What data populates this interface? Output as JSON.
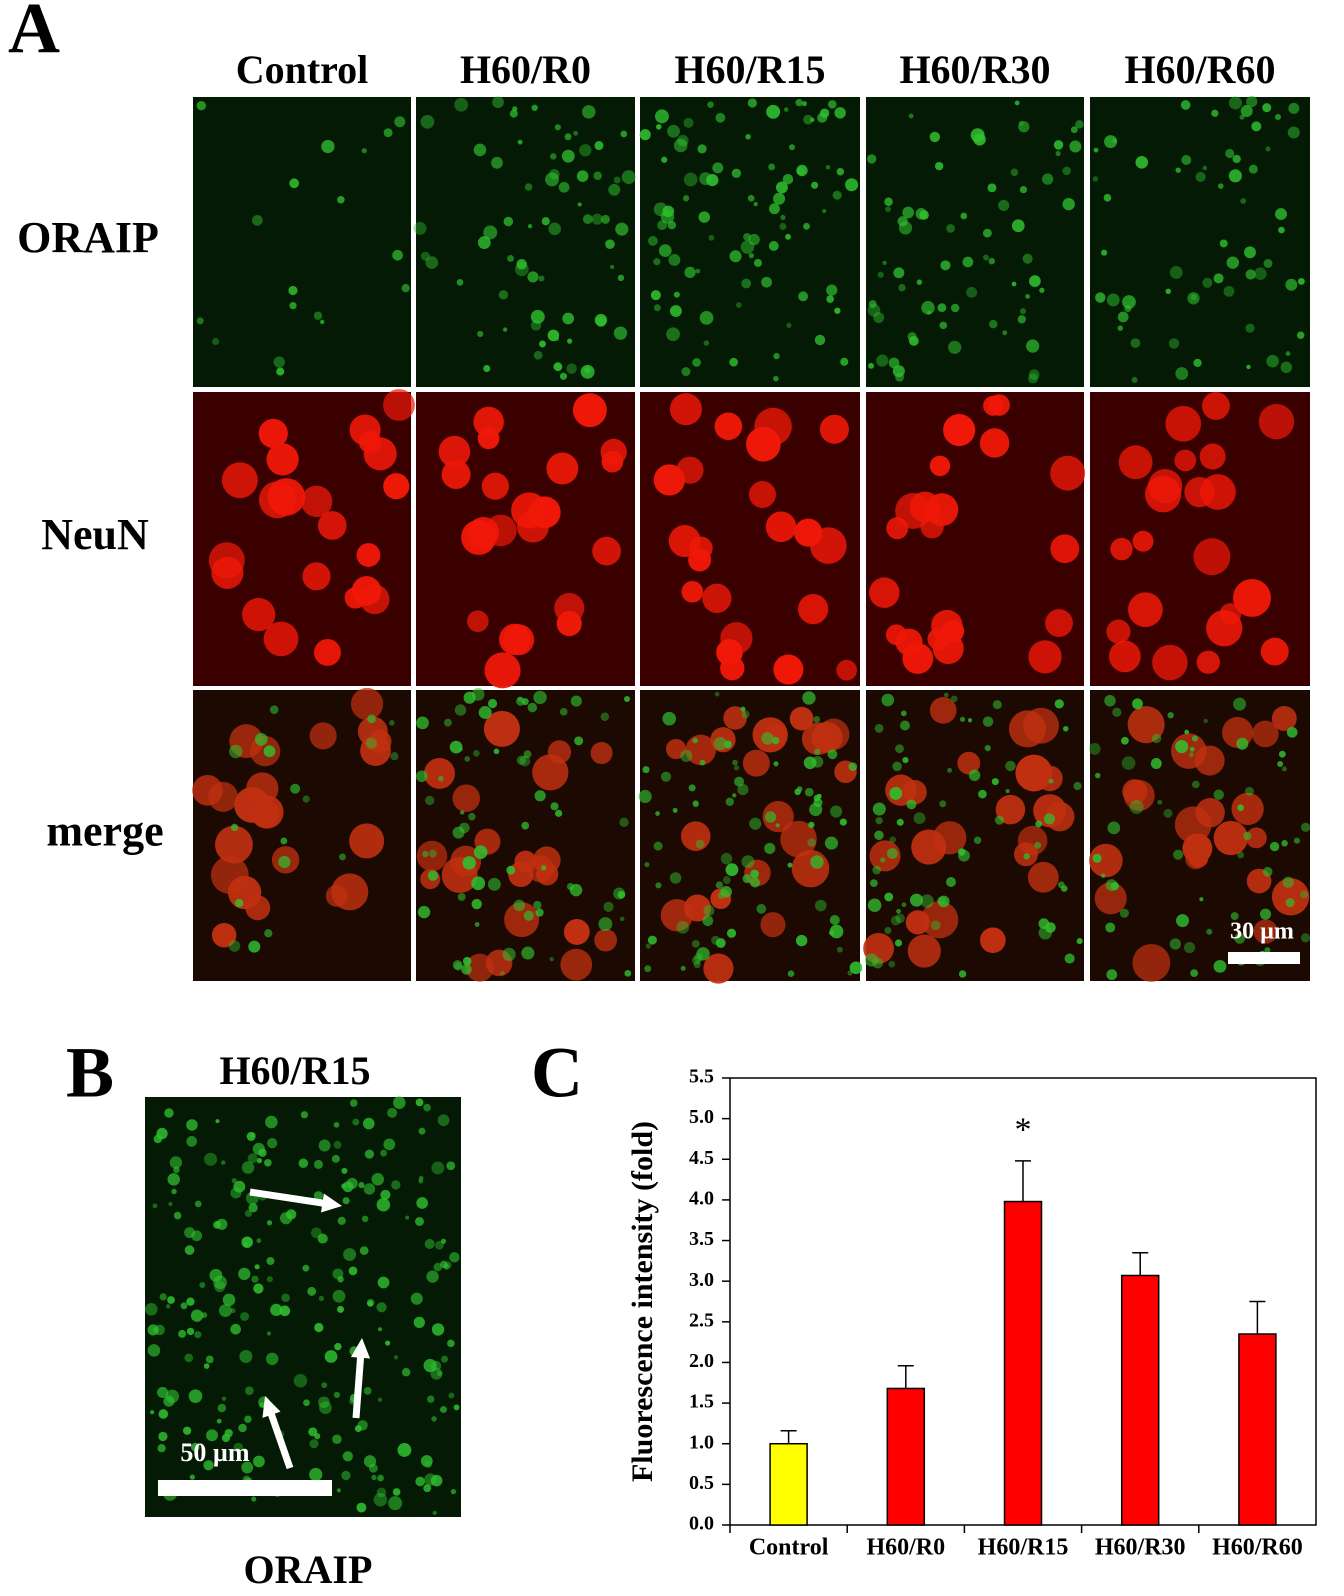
{
  "panel_a": {
    "label": "A",
    "columns": [
      "Control",
      "H60/R0",
      "H60/R15",
      "H60/R30",
      "H60/R60"
    ],
    "rows": [
      "ORAIP",
      "NeuN",
      "merge"
    ],
    "scale_bar": "30 µm"
  },
  "panel_b": {
    "label": "B",
    "title": "H60/R15",
    "caption": "ORAIP",
    "scale_bar": "50 µm"
  },
  "panel_c": {
    "label": "C"
  },
  "chart_data": {
    "type": "bar",
    "ylabel": "Fluorescence intensity (fold)",
    "categories": [
      "Control",
      "H60/R0",
      "H60/R15",
      "H60/R30",
      "H60/R60"
    ],
    "values": [
      1.0,
      1.68,
      3.98,
      3.07,
      2.35
    ],
    "errors": [
      0.16,
      0.28,
      0.5,
      0.28,
      0.4
    ],
    "colors": [
      "#ffff00",
      "#ff0000",
      "#ff0000",
      "#ff0000",
      "#ff0000"
    ],
    "ylim": [
      0,
      5.5
    ],
    "yticks": [
      {
        "value": 0,
        "label": "0.0"
      },
      0.5,
      {
        "value": 1,
        "label": "1.0"
      },
      1.5,
      {
        "value": 2,
        "label": "2.0"
      },
      2.5,
      {
        "value": 3,
        "label": "3.0"
      },
      3.5,
      {
        "value": 4,
        "label": "4.0"
      },
      4.5,
      {
        "value": 5,
        "label": "5.0"
      },
      5.5
    ],
    "annotations": [
      {
        "text": "*",
        "category": "H60/R15"
      }
    ]
  }
}
